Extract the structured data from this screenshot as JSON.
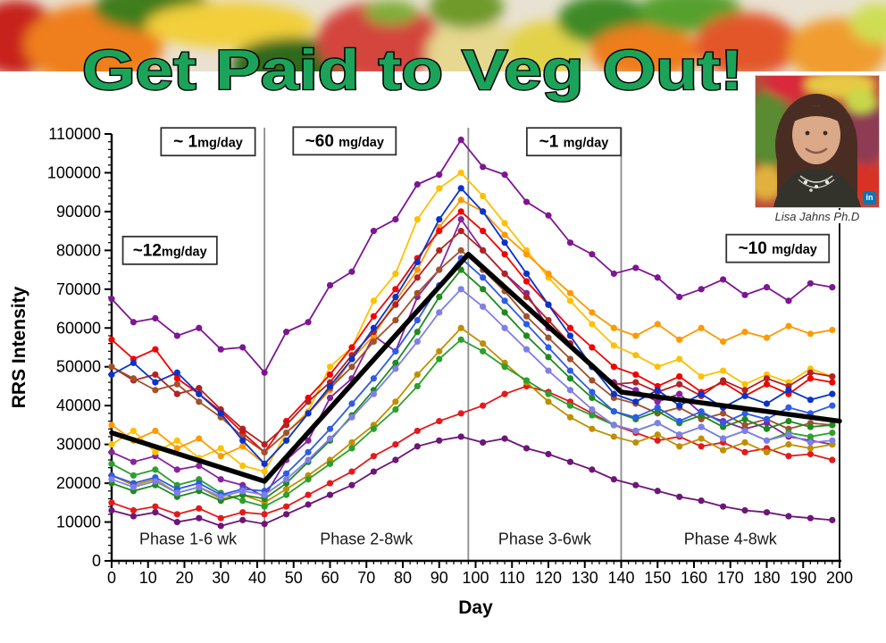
{
  "banner": {
    "title": "Get Paid to Veg Out!",
    "title_color": "#1CA35A",
    "title_outline": "#000000"
  },
  "profile": {
    "caption": "Lisa Jahns Ph.D",
    "linkedin_label": "in"
  },
  "chart_data": {
    "type": "line",
    "xlabel": "Day",
    "ylabel": "RRS Intensity",
    "xlim": [
      0,
      200
    ],
    "ylim": [
      0,
      110000
    ],
    "x_tick_labels": [
      0,
      10,
      20,
      30,
      40,
      50,
      60,
      70,
      80,
      90,
      100,
      110,
      120,
      130,
      140,
      150,
      160,
      170,
      180,
      190,
      200
    ],
    "y_tick_labels": [
      0,
      10000,
      20000,
      30000,
      40000,
      50000,
      60000,
      70000,
      80000,
      90000,
      100000,
      110000
    ],
    "x_minor_step": 2,
    "y_minor_step": 2000,
    "grid": "off",
    "legend": "none",
    "divider_color": "#8C8C8C",
    "phase_dividers_day": [
      42,
      98,
      140
    ],
    "phase_labels": [
      {
        "label": "Phase 1-6 wk",
        "day": 21,
        "value": 4300
      },
      {
        "label": "Phase 2-8wk",
        "day": 70,
        "value": 4300
      },
      {
        "label": "Phase 3-6wk",
        "day": 119,
        "value": 4300
      },
      {
        "label": "Phase 4-8wk",
        "day": 170,
        "value": 4300
      }
    ],
    "dose_annotations": [
      {
        "main": "~12",
        "unit": "mg/day",
        "day": 16,
        "value": 80000
      },
      {
        "main": "~ 1",
        "unit": "mg/day",
        "day": 26.5,
        "value": 108000
      },
      {
        "main": "~60 ",
        "unit": "mg/day",
        "day": 64,
        "value": 108200
      },
      {
        "main": "~1 ",
        "unit": "mg/day",
        "day": 127,
        "value": 108000
      },
      {
        "main": "~10 ",
        "unit": "mg/day",
        "day": 183,
        "value": 80500
      }
    ],
    "mean_line": {
      "color": "#000000",
      "points": [
        [
          0,
          33000
        ],
        [
          42,
          20500
        ],
        [
          98,
          79000
        ],
        [
          140,
          43500
        ],
        [
          200,
          36000
        ]
      ]
    },
    "series_days": [
      0,
      6,
      12,
      18,
      24,
      30,
      36,
      42,
      48,
      54,
      60,
      66,
      72,
      78,
      84,
      90,
      96,
      102,
      108,
      114,
      120,
      126,
      132,
      138,
      144,
      150,
      156,
      162,
      168,
      174,
      180,
      186,
      192,
      198
    ],
    "series": [
      {
        "name": "purple-A",
        "color": "#7D1692",
        "values": [
          67500,
          61500,
          62500,
          58000,
          60000,
          54500,
          55000,
          48500,
          59000,
          61500,
          71000,
          74500,
          85000,
          88000,
          97000,
          99500,
          108500,
          101500,
          99500,
          92500,
          89000,
          82000,
          79000,
          74000,
          75500,
          73000,
          68000,
          70000,
          72500,
          68500,
          70500,
          67000,
          71500,
          70500
        ]
      },
      {
        "name": "purple-B",
        "color": "#86259B",
        "values": [
          28000,
          25500,
          27000,
          23500,
          24500,
          21000,
          19500,
          16500,
          26000,
          31000,
          42000,
          47000,
          58000,
          54000,
          68000,
          75000,
          88000,
          80000,
          74000,
          69000,
          60000,
          56000,
          50000,
          46000,
          44000,
          41000,
          43000,
          38000,
          36000,
          34000,
          35500,
          32000,
          31000,
          30000
        ]
      },
      {
        "name": "purple-C",
        "color": "#6E1578",
        "values": [
          13000,
          11500,
          12500,
          10000,
          11000,
          9000,
          10500,
          9500,
          12000,
          14500,
          17000,
          19500,
          23000,
          26000,
          29500,
          31000,
          32000,
          30500,
          31500,
          29000,
          27500,
          25500,
          23500,
          21000,
          19500,
          18000,
          16500,
          15500,
          14000,
          13000,
          12500,
          11500,
          11000,
          10500
        ]
      },
      {
        "name": "gold",
        "color": "#FFC000",
        "values": [
          30000,
          33500,
          28000,
          31000,
          26500,
          29000,
          24500,
          23000,
          33000,
          38500,
          50000,
          55000,
          67000,
          74000,
          88000,
          96000,
          100000,
          94000,
          87000,
          80000,
          73000,
          67000,
          61000,
          55500,
          53000,
          50000,
          52000,
          47500,
          49000,
          45500,
          48000,
          46000,
          49500,
          47500
        ]
      },
      {
        "name": "orange",
        "color": "#FF9900",
        "values": [
          35000,
          31000,
          33500,
          29000,
          31500,
          27000,
          29500,
          25000,
          31000,
          38000,
          44000,
          52000,
          58000,
          67000,
          75000,
          86000,
          93000,
          90000,
          84000,
          79000,
          74000,
          69000,
          64000,
          60000,
          58000,
          61000,
          57000,
          60000,
          56500,
          59000,
          57500,
          60500,
          58500,
          59500
        ]
      },
      {
        "name": "red-A",
        "color": "#F40000",
        "values": [
          57000,
          52000,
          54500,
          47000,
          43000,
          38500,
          33000,
          28000,
          36000,
          42000,
          48000,
          55000,
          63000,
          70000,
          78000,
          85000,
          90000,
          85000,
          79000,
          72000,
          66000,
          60000,
          55000,
          50000,
          48000,
          45000,
          47500,
          43500,
          46000,
          42500,
          45500,
          43000,
          47000,
          46000
        ]
      },
      {
        "name": "red-B",
        "color": "#E31A1C",
        "values": [
          15000,
          13000,
          14000,
          12000,
          13500,
          11000,
          12500,
          12000,
          14000,
          17000,
          20000,
          23000,
          27000,
          30000,
          33500,
          36000,
          38000,
          40000,
          43000,
          45000,
          43500,
          41000,
          38000,
          35000,
          33000,
          31000,
          32000,
          29500,
          30500,
          28000,
          29000,
          27000,
          27500,
          26000
        ]
      },
      {
        "name": "firebrick",
        "color": "#B22222",
        "values": [
          50000,
          46500,
          48000,
          43000,
          44500,
          39000,
          34000,
          30000,
          35000,
          41000,
          46000,
          53000,
          59000,
          66000,
          73000,
          80000,
          85000,
          80000,
          74000,
          68000,
          62000,
          56000,
          50000,
          45500,
          46000,
          43500,
          45500,
          42500,
          46500,
          44000,
          47000,
          45000,
          48500,
          47500
        ]
      },
      {
        "name": "brown",
        "color": "#A0522D",
        "values": [
          50000,
          47000,
          44000,
          45500,
          41000,
          37000,
          32000,
          28000,
          33000,
          38000,
          44500,
          50000,
          56500,
          62000,
          69000,
          75000,
          80000,
          75000,
          69500,
          63000,
          57500,
          52000,
          46500,
          42000,
          40500,
          38000,
          39500,
          36500,
          38000,
          35000,
          36500,
          34000,
          35500,
          35000
        ]
      },
      {
        "name": "olive",
        "color": "#BF8F00",
        "values": [
          22000,
          19500,
          21000,
          17500,
          19000,
          16000,
          17000,
          15000,
          18500,
          22000,
          26000,
          30500,
          35000,
          41000,
          48000,
          54000,
          60000,
          56000,
          51000,
          46000,
          41000,
          37000,
          34000,
          32000,
          30500,
          32500,
          29500,
          31500,
          28500,
          30500,
          28000,
          30000,
          29000,
          30000
        ]
      },
      {
        "name": "green",
        "color": "#2CA02C",
        "values": [
          25000,
          22000,
          23500,
          19500,
          21000,
          17500,
          15500,
          14000,
          17000,
          21000,
          25000,
          29000,
          34000,
          39000,
          45000,
          52000,
          57000,
          54000,
          50000,
          46500,
          43000,
          40000,
          37500,
          35000,
          33500,
          35500,
          32500,
          34500,
          31500,
          33500,
          31000,
          33000,
          32000,
          33000
        ]
      },
      {
        "name": "dark-green",
        "color": "#1F8A1F",
        "values": [
          20000,
          18000,
          19500,
          16500,
          18000,
          15500,
          17000,
          16000,
          20000,
          25500,
          31000,
          37500,
          44000,
          51000,
          59000,
          68000,
          75000,
          70000,
          64000,
          58000,
          52500,
          47000,
          42000,
          38500,
          36500,
          38500,
          35500,
          37500,
          34500,
          36500,
          34000,
          36000,
          34500,
          35000
        ]
      },
      {
        "name": "blue-A",
        "color": "#0A33CC",
        "values": [
          48000,
          51000,
          46000,
          48500,
          43000,
          38000,
          31000,
          25000,
          31000,
          38000,
          45000,
          52000,
          60000,
          68000,
          77000,
          88000,
          96000,
          90000,
          82000,
          74000,
          66000,
          58000,
          50000,
          43000,
          41000,
          44000,
          40000,
          43000,
          39500,
          42500,
          40500,
          44000,
          41500,
          43000
        ]
      },
      {
        "name": "blue-B",
        "color": "#2E5BE8",
        "values": [
          22000,
          20000,
          21500,
          18500,
          20000,
          17000,
          18500,
          18000,
          22500,
          28000,
          34000,
          40500,
          47000,
          54000,
          62000,
          71000,
          78000,
          73000,
          67000,
          61000,
          55000,
          49000,
          43500,
          38500,
          37000,
          39500,
          36000,
          38500,
          35500,
          38000,
          36500,
          39500,
          38000,
          40000
        ]
      },
      {
        "name": "periwinkle",
        "color": "#7F7FE8",
        "values": [
          21000,
          19000,
          20500,
          17500,
          19000,
          16500,
          18000,
          17000,
          21000,
          26000,
          31500,
          37000,
          43000,
          49500,
          56500,
          64000,
          70000,
          65500,
          60000,
          54500,
          49000,
          44000,
          39000,
          35000,
          33500,
          35500,
          32500,
          34500,
          31500,
          33500,
          31000,
          32500,
          30500,
          31000
        ]
      }
    ]
  }
}
